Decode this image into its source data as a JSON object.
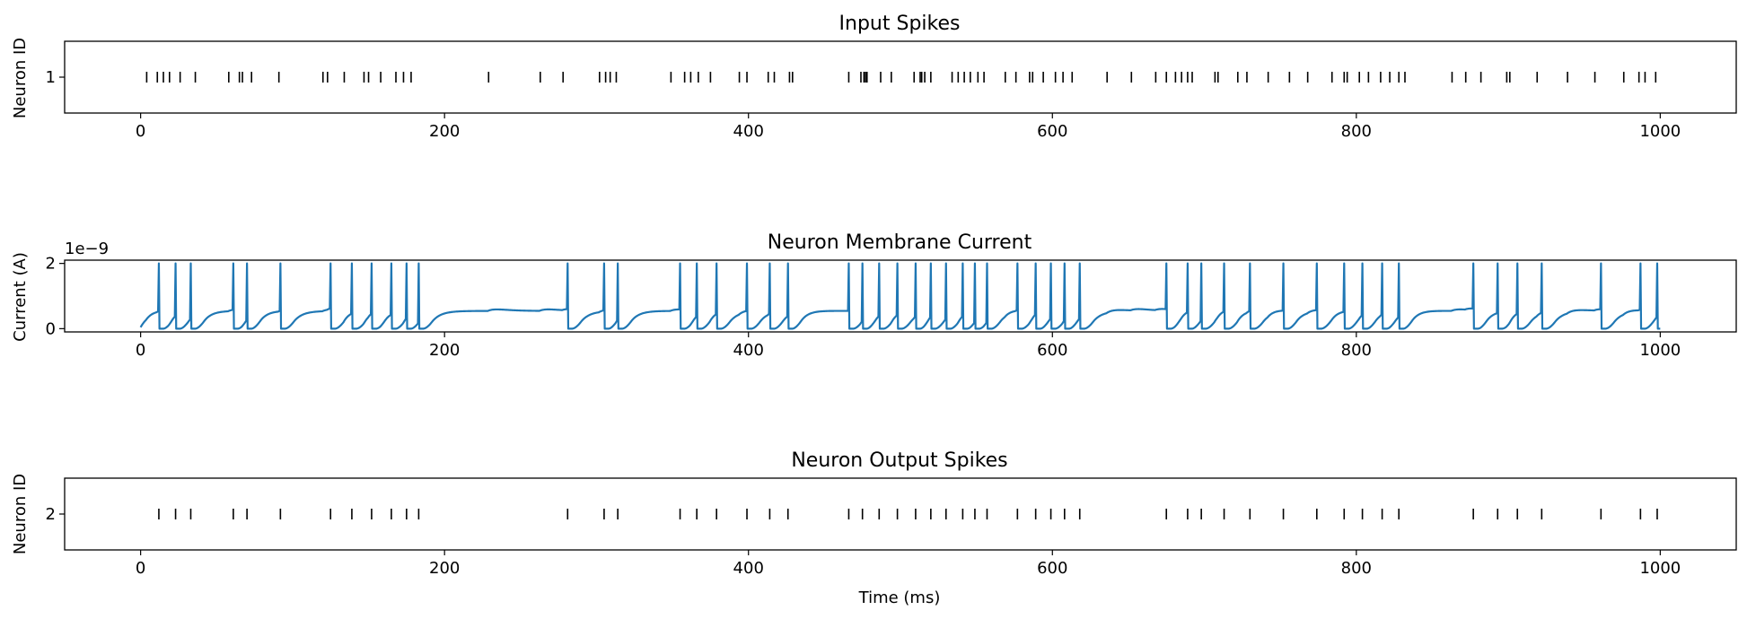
{
  "chart_data": [
    {
      "type": "scatter",
      "marker": "vertical-tick",
      "title": "Input Spikes",
      "ylabel": "Neuron ID",
      "xlabel": "",
      "xlim": [
        -50,
        1050
      ],
      "ylim": [
        0.5,
        1.5
      ],
      "xticks": [
        0,
        200,
        400,
        600,
        800,
        1000
      ],
      "yticks": [
        1
      ],
      "xtick_labels": [
        "0",
        "200",
        "400",
        "600",
        "800",
        "1000"
      ],
      "ytick_labels": [
        "1"
      ],
      "neuron_id": 1,
      "spike_times": [
        4,
        11,
        15,
        19,
        26,
        36,
        58,
        65,
        67,
        73,
        91,
        120,
        123,
        134,
        147,
        150,
        158,
        168,
        173,
        178,
        229,
        263,
        278,
        302,
        306,
        309,
        313,
        349,
        358,
        362,
        367,
        375,
        394,
        399,
        413,
        417,
        427,
        429,
        466,
        474,
        476,
        477,
        478,
        487,
        494,
        509,
        513,
        514,
        516,
        520,
        534,
        538,
        542,
        546,
        551,
        555,
        569,
        576,
        585,
        587,
        594,
        602,
        607,
        613,
        636,
        652,
        668,
        675,
        681,
        685,
        689,
        692,
        707,
        709,
        722,
        728,
        742,
        756,
        768,
        784,
        792,
        794,
        802,
        808,
        816,
        822,
        828,
        832,
        863,
        872,
        882,
        899,
        901,
        919,
        939,
        957,
        976,
        986,
        990,
        997
      ],
      "color": "#000000"
    },
    {
      "type": "line",
      "title": "Neuron Membrane Current",
      "ylabel": "Current (A)",
      "xlabel": "",
      "offset_text": "1e−9",
      "xlim": [
        -50,
        1050
      ],
      "ylim": [
        -0.1,
        2.1
      ],
      "xticks": [
        0,
        200,
        400,
        600,
        800,
        1000
      ],
      "yticks": [
        0,
        2
      ],
      "xtick_labels": [
        "0",
        "200",
        "400",
        "600",
        "800",
        "1000"
      ],
      "ytick_labels": [
        "0",
        "2"
      ],
      "units_scale": 1e-09,
      "color": "#1f77b4",
      "input_spike_times": [
        4,
        11,
        15,
        19,
        26,
        36,
        58,
        65,
        67,
        73,
        91,
        120,
        123,
        134,
        147,
        150,
        158,
        168,
        173,
        178,
        229,
        263,
        278,
        302,
        306,
        309,
        313,
        349,
        358,
        362,
        367,
        375,
        394,
        399,
        413,
        417,
        427,
        429,
        466,
        474,
        476,
        477,
        478,
        487,
        494,
        509,
        513,
        514,
        516,
        520,
        534,
        538,
        542,
        546,
        551,
        555,
        569,
        576,
        585,
        587,
        594,
        602,
        607,
        613,
        636,
        652,
        668,
        675,
        681,
        685,
        689,
        692,
        707,
        709,
        722,
        728,
        742,
        756,
        768,
        784,
        792,
        794,
        802,
        808,
        816,
        822,
        828,
        832,
        863,
        872,
        882,
        899,
        901,
        919,
        939,
        957,
        976,
        986,
        990,
        997
      ],
      "output_spike_times": [
        12,
        23,
        33,
        61,
        70,
        92,
        125,
        139,
        152,
        165,
        175,
        183,
        281,
        305,
        314,
        355,
        366,
        379,
        399,
        414,
        426,
        466,
        475,
        486,
        498,
        510,
        520,
        530,
        541,
        549,
        557,
        577,
        589,
        599,
        608,
        618,
        675,
        689,
        698,
        713,
        730,
        752,
        774,
        792,
        804,
        817,
        828,
        877,
        893,
        906,
        922,
        961,
        987,
        998
      ],
      "peak": 2.0,
      "plateau_after_input": 0.55,
      "resting": 0.0
    },
    {
      "type": "scatter",
      "marker": "vertical-tick",
      "title": "Neuron Output Spikes",
      "ylabel": "Neuron ID",
      "xlabel": "Time (ms)",
      "xlim": [
        -50,
        1050
      ],
      "ylim": [
        1.5,
        2.5
      ],
      "xticks": [
        0,
        200,
        400,
        600,
        800,
        1000
      ],
      "yticks": [
        2
      ],
      "xtick_labels": [
        "0",
        "200",
        "400",
        "600",
        "800",
        "1000"
      ],
      "ytick_labels": [
        "2"
      ],
      "neuron_id": 2,
      "spike_times": [
        12,
        23,
        33,
        61,
        70,
        92,
        125,
        139,
        152,
        165,
        175,
        183,
        281,
        305,
        314,
        355,
        366,
        379,
        399,
        414,
        426,
        466,
        475,
        486,
        498,
        510,
        520,
        530,
        541,
        549,
        557,
        577,
        589,
        599,
        608,
        618,
        675,
        689,
        698,
        713,
        730,
        752,
        774,
        792,
        804,
        817,
        828,
        877,
        893,
        906,
        922,
        961,
        987,
        998
      ],
      "color": "#000000"
    }
  ]
}
